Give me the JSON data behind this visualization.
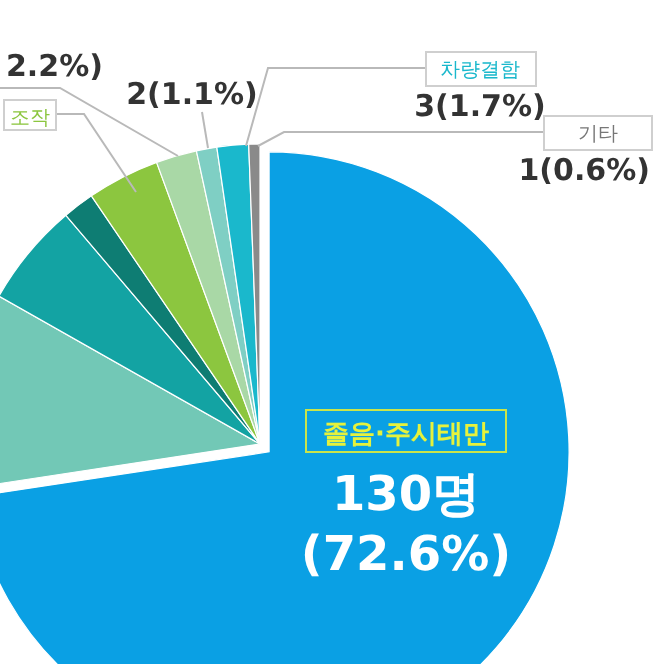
{
  "chart_data": {
    "type": "pie",
    "categories": [
      "졸음·주시태만",
      null,
      null,
      null,
      "조작",
      null,
      null,
      "차량결함",
      "기타"
    ],
    "values": [
      72.6,
      10.6,
      5.6,
      1.7,
      3.9,
      2.2,
      1.1,
      1.7,
      0.6
    ],
    "colors": [
      "#0aa0e4",
      "#72c8b6",
      "#13a3a3",
      "#0e7d73",
      "#8cc63f",
      "#a9d8a6",
      "#7fcfc4",
      "#1ab8cc",
      "#8a8a8a"
    ],
    "value_labels": [
      "130명 (72.6%)",
      null,
      null,
      null,
      null,
      "2.2%)",
      "2(1.1%)",
      "3(1.7%)",
      "1(0.6%)"
    ]
  }
}
